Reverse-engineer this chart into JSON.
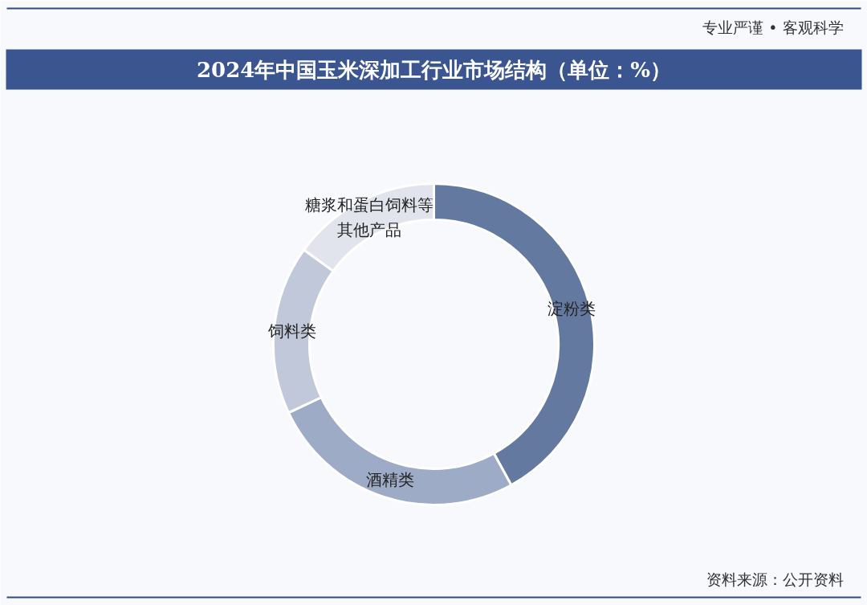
{
  "chart_data": {
    "type": "donut",
    "title": "2024年中国玉米深加工行业市场结构（单位：%）",
    "categories": [
      "淀粉类",
      "酒精类",
      "饲料类",
      "糖浆和蛋白饲料等其他产品"
    ],
    "values": [
      42,
      26,
      17,
      15
    ],
    "colors": [
      "#6479a0",
      "#9dabc6",
      "#c0c8da",
      "#e1e4ec"
    ],
    "annotations": [
      "专业严谨 • 客观科学",
      "资料来源：公开资料"
    ],
    "legend": false
  }
}
